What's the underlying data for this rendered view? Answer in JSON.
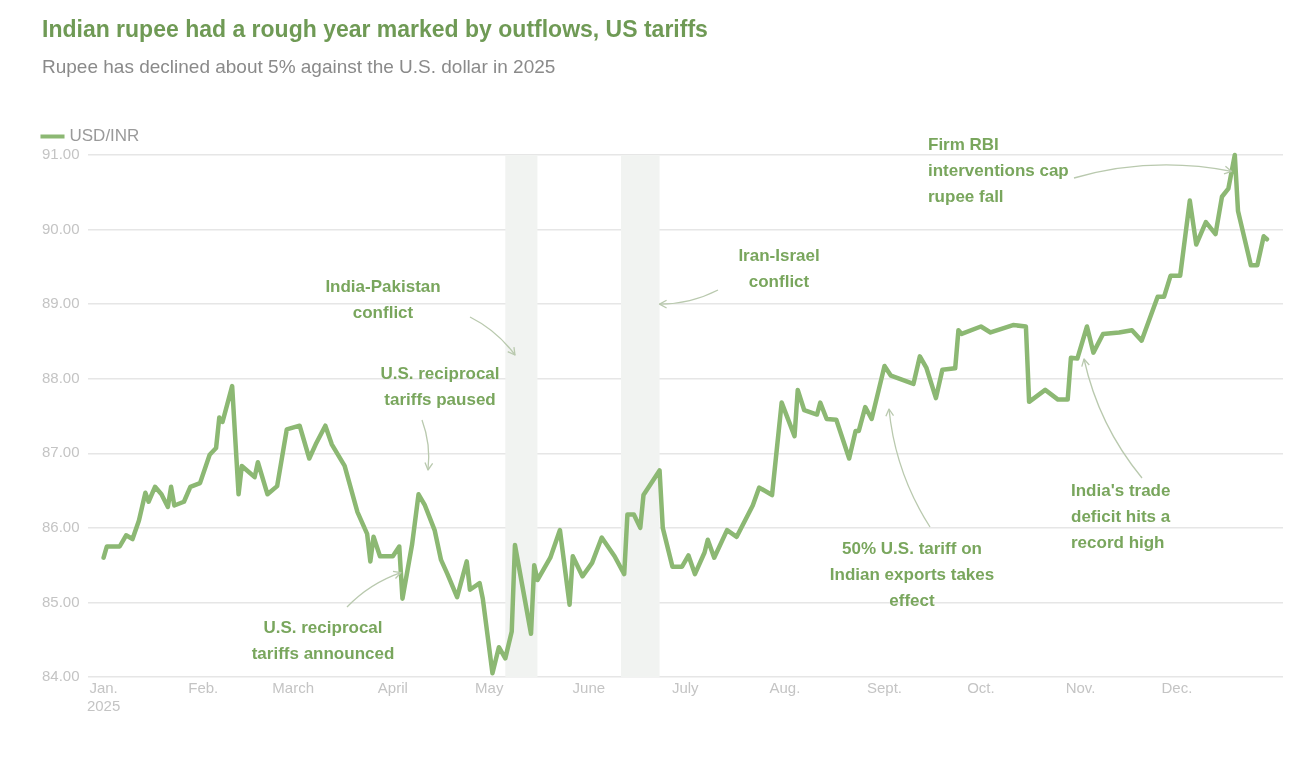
{
  "chart_data": {
    "type": "line",
    "title": "Indian rupee had a rough year marked by outflows, US tariffs",
    "subtitle": "Rupee has declined about 5% against the U.S. dollar in 2025",
    "x": [
      "2025-01-01",
      "2025-01-02",
      "2025-01-06",
      "2025-01-08",
      "2025-01-10",
      "2025-01-12",
      "2025-01-14",
      "2025-01-15",
      "2025-01-17",
      "2025-01-19",
      "2025-01-21",
      "2025-01-22",
      "2025-01-23",
      "2025-01-26",
      "2025-01-28",
      "2025-01-31",
      "2025-02-03",
      "2025-02-05",
      "2025-02-06",
      "2025-02-07",
      "2025-02-10",
      "2025-02-12",
      "2025-02-13",
      "2025-02-17",
      "2025-02-18",
      "2025-02-21",
      "2025-02-24",
      "2025-02-27",
      "2025-03-03",
      "2025-03-06",
      "2025-03-08",
      "2025-03-11",
      "2025-03-13",
      "2025-03-17",
      "2025-03-21",
      "2025-03-24",
      "2025-03-25",
      "2025-03-26",
      "2025-03-28",
      "2025-04-01",
      "2025-04-03",
      "2025-04-04",
      "2025-04-07",
      "2025-04-09",
      "2025-04-11",
      "2025-04-14",
      "2025-04-16",
      "2025-04-18",
      "2025-04-21",
      "2025-04-24",
      "2025-04-25",
      "2025-04-28",
      "2025-04-29",
      "2025-05-02",
      "2025-05-04",
      "2025-05-06",
      "2025-05-08",
      "2025-05-09",
      "2025-05-14",
      "2025-05-15",
      "2025-05-16",
      "2025-05-20",
      "2025-05-23",
      "2025-05-26",
      "2025-05-27",
      "2025-05-30",
      "2025-06-02",
      "2025-06-05",
      "2025-06-09",
      "2025-06-12",
      "2025-06-13",
      "2025-06-15",
      "2025-06-17",
      "2025-06-18",
      "2025-06-23",
      "2025-06-24",
      "2025-06-27",
      "2025-06-30",
      "2025-07-02",
      "2025-07-04",
      "2025-07-07",
      "2025-07-08",
      "2025-07-10",
      "2025-07-14",
      "2025-07-17",
      "2025-07-22",
      "2025-07-24",
      "2025-07-28",
      "2025-07-31",
      "2025-08-04",
      "2025-08-05",
      "2025-08-07",
      "2025-08-11",
      "2025-08-12",
      "2025-08-14",
      "2025-08-17",
      "2025-08-21",
      "2025-08-23",
      "2025-08-24",
      "2025-08-26",
      "2025-08-28",
      "2025-09-01",
      "2025-09-03",
      "2025-09-10",
      "2025-09-12",
      "2025-09-14",
      "2025-09-17",
      "2025-09-19",
      "2025-09-23",
      "2025-09-24",
      "2025-09-25",
      "2025-10-01",
      "2025-10-04",
      "2025-10-11",
      "2025-10-15",
      "2025-10-16",
      "2025-10-21",
      "2025-10-25",
      "2025-10-28",
      "2025-10-29",
      "2025-10-31",
      "2025-11-03",
      "2025-11-05",
      "2025-11-08",
      "2025-11-13",
      "2025-11-17",
      "2025-11-20",
      "2025-11-25",
      "2025-11-27",
      "2025-11-29",
      "2025-12-02",
      "2025-12-05",
      "2025-12-07",
      "2025-12-10",
      "2025-12-13",
      "2025-12-15",
      "2025-12-17",
      "2025-12-19",
      "2025-12-20",
      "2025-12-24",
      "2025-12-26",
      "2025-12-28",
      "2025-12-29"
    ],
    "series": [
      {
        "name": "USD/INR",
        "color": "#8cb873",
        "values": [
          85.6,
          85.75,
          85.75,
          85.9,
          85.85,
          86.1,
          86.47,
          86.35,
          86.55,
          86.45,
          86.28,
          86.55,
          86.3,
          86.35,
          86.55,
          86.6,
          86.98,
          87.07,
          87.48,
          87.42,
          87.9,
          86.45,
          86.83,
          86.68,
          86.88,
          86.45,
          86.56,
          87.32,
          87.37,
          86.93,
          87.12,
          87.37,
          87.12,
          86.83,
          86.21,
          85.92,
          85.55,
          85.88,
          85.62,
          85.62,
          85.75,
          85.05,
          85.78,
          86.45,
          86.3,
          85.97,
          85.57,
          85.38,
          85.07,
          85.55,
          85.17,
          85.26,
          85.05,
          84.05,
          84.4,
          84.25,
          84.61,
          85.77,
          84.58,
          85.5,
          85.3,
          85.6,
          85.97,
          84.97,
          85.62,
          85.35,
          85.53,
          85.87,
          85.62,
          85.38,
          86.18,
          86.18,
          86.0,
          86.44,
          86.77,
          86.0,
          85.48,
          85.48,
          85.63,
          85.38,
          85.67,
          85.84,
          85.6,
          85.97,
          85.88,
          86.3,
          86.54,
          86.44,
          87.68,
          87.23,
          87.85,
          87.58,
          87.52,
          87.68,
          87.46,
          87.45,
          86.93,
          87.3,
          87.3,
          87.62,
          87.46,
          88.17,
          88.04,
          87.93,
          88.3,
          88.15,
          87.74,
          88.12,
          88.14,
          88.65,
          88.6,
          88.7,
          88.62,
          88.72,
          88.7,
          87.69,
          87.85,
          87.72,
          87.72,
          88.28,
          88.27,
          88.7,
          88.35,
          88.6,
          88.62,
          88.65,
          88.51,
          89.1,
          89.1,
          89.38,
          89.38,
          90.39,
          89.8,
          90.1,
          89.94,
          90.44,
          90.55,
          91.0,
          90.25,
          89.52,
          89.52,
          89.91,
          89.87
        ]
      }
    ],
    "xlim": [
      "2024-12-27",
      "2026-01-03"
    ],
    "xticks": [
      {
        "value": "2025-01-01",
        "label": "Jan.\n2025"
      },
      {
        "value": "2025-02-01",
        "label": "Feb."
      },
      {
        "value": "2025-03-01",
        "label": "March"
      },
      {
        "value": "2025-04-01",
        "label": "April"
      },
      {
        "value": "2025-05-01",
        "label": "May"
      },
      {
        "value": "2025-06-01",
        "label": "June"
      },
      {
        "value": "2025-07-01",
        "label": "July"
      },
      {
        "value": "2025-08-01",
        "label": "Aug."
      },
      {
        "value": "2025-09-01",
        "label": "Sept."
      },
      {
        "value": "2025-10-01",
        "label": "Oct."
      },
      {
        "value": "2025-11-01",
        "label": "Nov."
      },
      {
        "value": "2025-12-01",
        "label": "Dec."
      }
    ],
    "ylim": [
      84,
      91
    ],
    "yticks": [
      {
        "value": 84,
        "label": "84.00"
      },
      {
        "value": 85,
        "label": "85.00"
      },
      {
        "value": 86,
        "label": "86.00"
      },
      {
        "value": 87,
        "label": "87.00"
      },
      {
        "value": 88,
        "label": "88.00"
      },
      {
        "value": 89,
        "label": "89.00"
      },
      {
        "value": 90,
        "label": "90.00"
      },
      {
        "value": 91,
        "label": "91.00"
      }
    ],
    "bands": [
      {
        "axis": "x",
        "from": "2025-05-06",
        "to": "2025-05-16",
        "color": "#f1f3f1"
      },
      {
        "axis": "x",
        "from": "2025-06-11",
        "to": "2025-06-23",
        "color": "#f1f3f1"
      }
    ],
    "annotations": [
      "India-Pakistan conflict",
      {
        "text": "Iran-Israel conflict",
        "x": "2025-06-23",
        "y": 89
      },
      "U.S. reciprocal tariffs paused",
      {
        "text": "U.S. reciprocal tariffs announced",
        "x": "2025-04-03T12:00",
        "y": 85.4
      },
      "50% U.S. tariff on Indian exports takes effect",
      "India's trade deficit hits a record high",
      {
        "text": "Firm RBI interventions cap rupee fall",
        "x": "2025-12-18",
        "y": 90.78
      }
    ],
    "grid": "y",
    "legend": "top left",
    "marker": "none",
    "line_style": "solid"
  }
}
